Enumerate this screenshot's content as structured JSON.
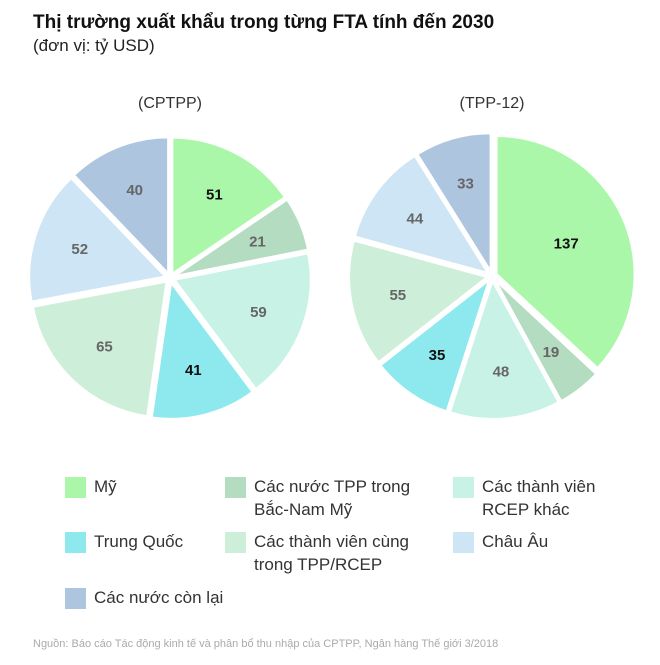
{
  "title": "Thị trường xuất khẩu trong từng FTA tính đến 2030",
  "subtitle": "(đơn vị: tỷ USD)",
  "source": "Nguồn: Báo cáo Tác động kinh tế và phân bổ thu nhập của CPTPP, Ngân hàng Thế giới 3/2018",
  "chart_data": [
    {
      "type": "pie",
      "title": "(CPTPP)",
      "categories": [
        "Mỹ",
        "Các nước TPP trong Bắc-Nam Mỹ",
        "Các thành viên cùng trong TPP/RCEP",
        "Trung Quốc",
        "Các thành viên RCEP khác",
        "Châu Âu",
        "Các nước còn lại"
      ],
      "values": [
        51,
        21,
        59,
        41,
        65,
        52,
        40
      ]
    },
    {
      "type": "pie",
      "title": "(TPP-12)",
      "categories": [
        "Mỹ",
        "Các nước TPP trong Bắc-Nam Mỹ",
        "Các thành viên cùng trong TPP/RCEP",
        "Trung Quốc",
        "Các thành viên RCEP khác",
        "Châu Âu",
        "Các nước còn lại"
      ],
      "values": [
        137,
        19,
        48,
        35,
        55,
        44,
        33
      ]
    }
  ],
  "legend": [
    {
      "label": "Mỹ",
      "color": "#aaf7a9"
    },
    {
      "label": "Các nước TPP trong Bắc-Nam Mỹ",
      "color": "#b4dcc0"
    },
    {
      "label": "Các thành viên RCEP khác",
      "color": "#c9f2e6"
    },
    {
      "label": "Trung Quốc",
      "color": "#8de9ee"
    },
    {
      "label": "Các thành viên cùng trong TPP/RCEP",
      "color": "#cdeed9"
    },
    {
      "label": "Châu Âu",
      "color": "#cde5f4"
    },
    {
      "label": "Các nước còn lại",
      "color": "#aec5e0"
    }
  ]
}
